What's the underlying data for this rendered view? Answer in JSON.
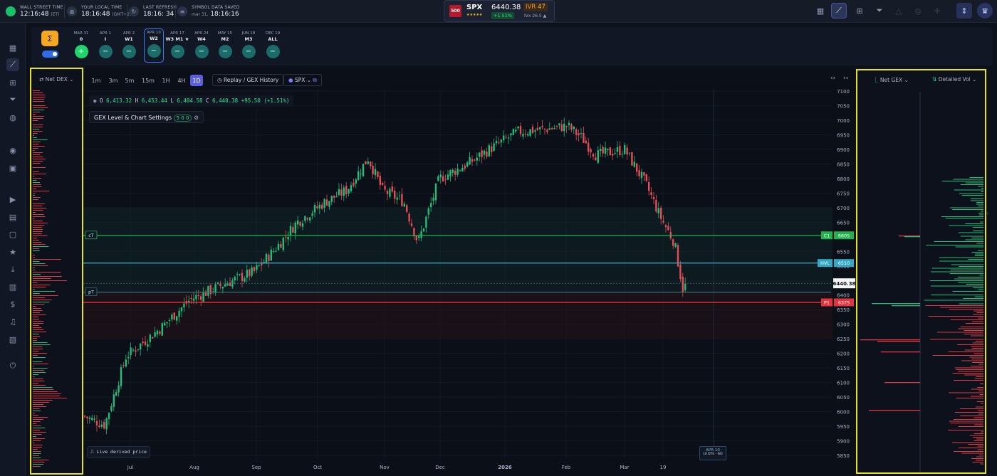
{
  "topbar": {
    "wall_street_label": "WALL STREET TIME",
    "wall_street_time": "12:16:48",
    "wall_street_tz": "(ET)",
    "local_label": "YOUR LOCAL TIME",
    "local_time": "18:16:48",
    "local_tz": "(GMT+2)",
    "refresh_label": "LAST REFRESH",
    "refresh_time": "18:16: 34",
    "saved_label": "SYMBOL DATA SAVED",
    "saved_date": "mar 31,",
    "saved_time": "18:16:16"
  },
  "ticker": {
    "logo": "500",
    "symbol": "SPX",
    "stars": "★★★★★",
    "price": "6440.38",
    "change": "+1.51%",
    "ivr_label": "IVR",
    "ivr_value": "47",
    "ivx_label": "IVx",
    "ivx_value": "26.5 ▲"
  },
  "expirations": [
    {
      "date": "MAR 31",
      "label": "0",
      "btn": "+"
    },
    {
      "date": "APR 1",
      "label": "I",
      "btn": "−"
    },
    {
      "date": "APR 2",
      "label": "W1",
      "btn": "−"
    },
    {
      "date": "APR 10",
      "label": "W2",
      "btn": "−"
    },
    {
      "date": "APR 17",
      "label": "W3  M1 ★",
      "btn": "−"
    },
    {
      "date": "APR 24",
      "label": "W4",
      "btn": "−"
    },
    {
      "date": "MAY 15",
      "label": "M2",
      "btn": "−"
    },
    {
      "date": "JUN 18",
      "label": "M3",
      "btn": "−"
    },
    {
      "date": "DEC 19",
      "label": "ALL",
      "btn": "−"
    }
  ],
  "left_panel": {
    "title": "Net DEX"
  },
  "right_panel": {
    "title1": "Net GEX",
    "title2": "Detailed Vol"
  },
  "toolbar": {
    "timeframes": [
      "1m",
      "3m",
      "5m",
      "15m",
      "1H",
      "4H",
      "1D"
    ],
    "active_timeframe": "1D",
    "replay_label": "Replay / GEX History",
    "symbol_label": "SPX"
  },
  "ohlc": {
    "o": "6,413.32",
    "h": "6,453.44",
    "l": "6,404.58",
    "c": "6,440.38",
    "chg": "+95.50 (+1.51%)"
  },
  "settings": {
    "label": "GEX Level & Chart Settings",
    "badge": "5 0 0"
  },
  "live_label": "Live derived price",
  "date_marker": {
    "line1": "APR 10",
    "line2": "10 DTE - W2"
  },
  "chart_data": {
    "type": "candlestick",
    "x_labels": [
      "Jul",
      "Aug",
      "Sep",
      "Oct",
      "Nov",
      "Dec",
      "2026",
      "Feb",
      "Mar",
      "19"
    ],
    "y_ticks": [
      5850,
      5900,
      5950,
      6000,
      6050,
      6100,
      6150,
      6200,
      6250,
      6300,
      6350,
      6400,
      6450,
      6500,
      6550,
      6600,
      6650,
      6700,
      6750,
      6800,
      6850,
      6900,
      6950,
      7000,
      7050,
      7100
    ],
    "ylim": [
      5830,
      7100
    ],
    "last_price": 6440.38,
    "levels": [
      {
        "name": "cT",
        "label": "C1",
        "value": 6605,
        "color": "#22b14c"
      },
      {
        "name": "",
        "label": "HVL",
        "value": 6510,
        "color": "#33a7c4"
      },
      {
        "name": "pT",
        "label": "",
        "value": 6410,
        "color": "#3a6e75"
      },
      {
        "name": "",
        "label": "P1",
        "value": 6375,
        "color": "#e0353e"
      }
    ],
    "colors": {
      "up": "#1fbf7a",
      "down": "#e84c54"
    }
  }
}
